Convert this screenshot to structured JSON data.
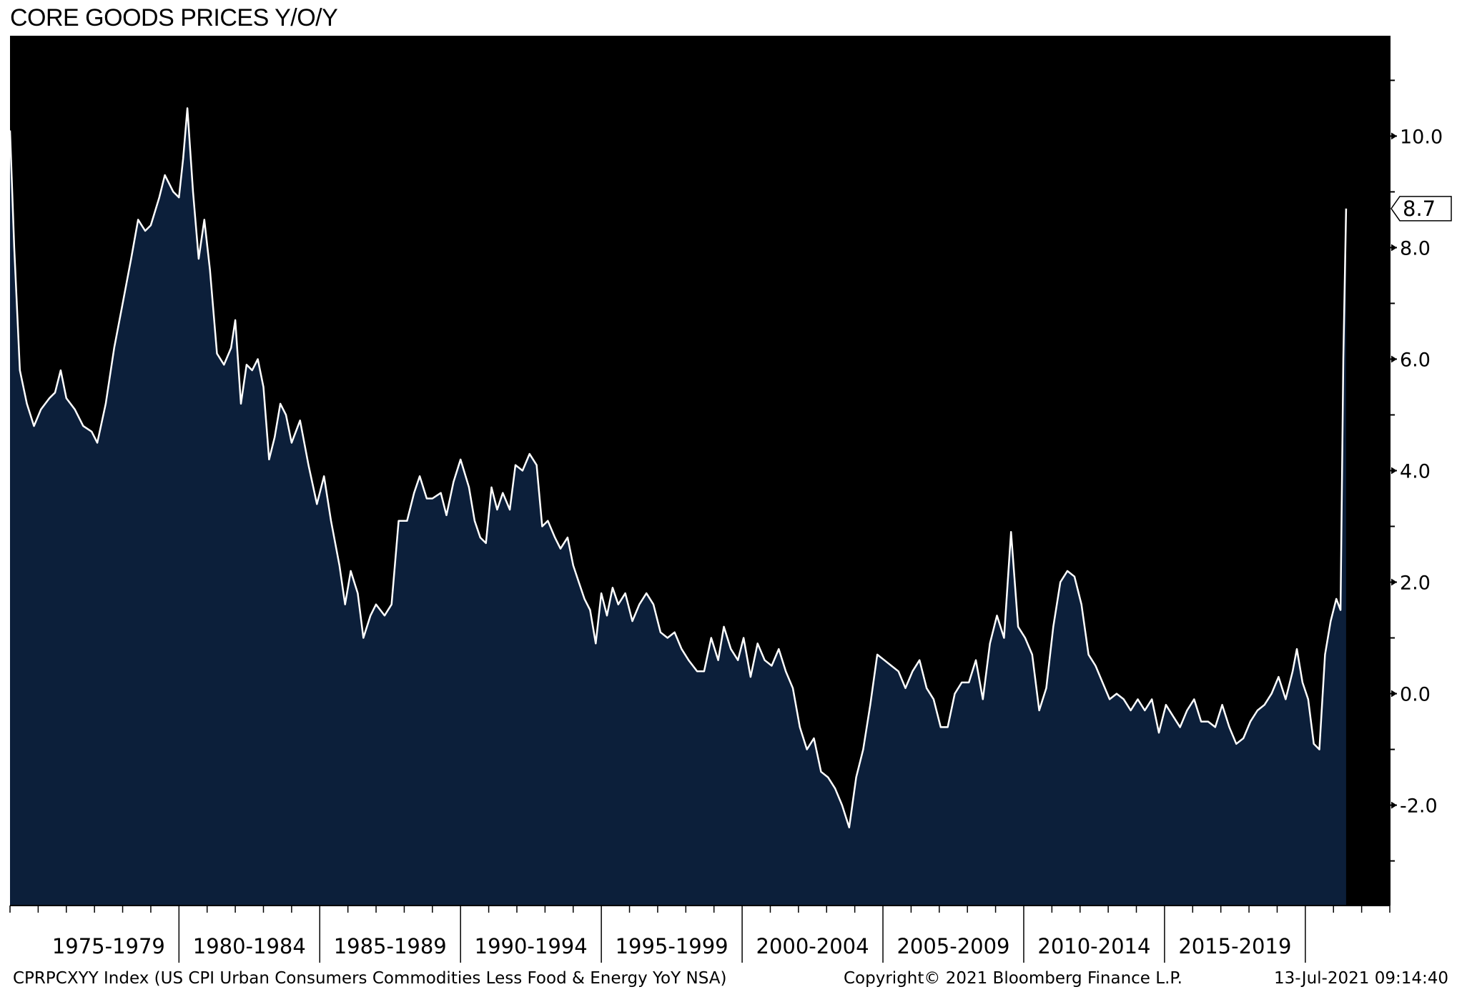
{
  "chart_data": {
    "type": "area",
    "title": "CORE GOODS PRICES Y/O/Y",
    "xlabel": "",
    "ylabel": "",
    "xlim": [
      1974.0,
      2023.0
    ],
    "ylim": [
      -3.8,
      11.8
    ],
    "grid": false,
    "y_axis_side": "right",
    "y_ticks": [
      -2.0,
      0.0,
      2.0,
      4.0,
      6.0,
      8.0,
      10.0
    ],
    "y_tick_labels": [
      "-2.0",
      "0.0",
      "2.0",
      "4.0",
      "6.0",
      "8.0",
      "10.0"
    ],
    "x_period_labels": [
      "1975-1979",
      "1980-1984",
      "1985-1989",
      "1990-1994",
      "1995-1999",
      "2000-2004",
      "2005-2009",
      "2010-2014",
      "2015-2019"
    ],
    "last_value_label": "8.7",
    "colors": {
      "area_fill": "#0c1f3a",
      "line": "#ffffff",
      "background": "#000000"
    },
    "series": [
      {
        "values": [
          [
            1974.0,
            10.1
          ],
          [
            1974.15,
            8.0
          ],
          [
            1974.35,
            5.8
          ],
          [
            1974.6,
            5.2
          ],
          [
            1974.85,
            4.8
          ],
          [
            1975.1,
            5.1
          ],
          [
            1975.4,
            5.3
          ],
          [
            1975.6,
            5.4
          ],
          [
            1975.8,
            5.8
          ],
          [
            1976.0,
            5.3
          ],
          [
            1976.3,
            5.1
          ],
          [
            1976.6,
            4.8
          ],
          [
            1976.9,
            4.7
          ],
          [
            1977.1,
            4.5
          ],
          [
            1977.4,
            5.2
          ],
          [
            1977.7,
            6.2
          ],
          [
            1978.0,
            7.0
          ],
          [
            1978.3,
            7.8
          ],
          [
            1978.55,
            8.5
          ],
          [
            1978.8,
            8.3
          ],
          [
            1979.0,
            8.4
          ],
          [
            1979.3,
            8.9
          ],
          [
            1979.5,
            9.3
          ],
          [
            1979.8,
            9.0
          ],
          [
            1980.0,
            8.9
          ],
          [
            1980.15,
            9.6
          ],
          [
            1980.3,
            10.5
          ],
          [
            1980.5,
            9.0
          ],
          [
            1980.7,
            7.8
          ],
          [
            1980.9,
            8.5
          ],
          [
            1981.1,
            7.6
          ],
          [
            1981.35,
            6.1
          ],
          [
            1981.6,
            5.9
          ],
          [
            1981.85,
            6.2
          ],
          [
            1982.0,
            6.7
          ],
          [
            1982.2,
            5.2
          ],
          [
            1982.4,
            5.9
          ],
          [
            1982.6,
            5.8
          ],
          [
            1982.8,
            6.0
          ],
          [
            1983.0,
            5.5
          ],
          [
            1983.2,
            4.2
          ],
          [
            1983.4,
            4.6
          ],
          [
            1983.6,
            5.2
          ],
          [
            1983.8,
            5.0
          ],
          [
            1984.0,
            4.5
          ],
          [
            1984.3,
            4.9
          ],
          [
            1984.6,
            4.1
          ],
          [
            1984.9,
            3.4
          ],
          [
            1985.15,
            3.9
          ],
          [
            1985.4,
            3.1
          ],
          [
            1985.7,
            2.3
          ],
          [
            1985.9,
            1.6
          ],
          [
            1986.1,
            2.2
          ],
          [
            1986.35,
            1.8
          ],
          [
            1986.55,
            1.0
          ],
          [
            1986.8,
            1.4
          ],
          [
            1987.0,
            1.6
          ],
          [
            1987.3,
            1.4
          ],
          [
            1987.55,
            1.6
          ],
          [
            1987.8,
            3.1
          ],
          [
            1988.1,
            3.1
          ],
          [
            1988.35,
            3.6
          ],
          [
            1988.55,
            3.9
          ],
          [
            1988.8,
            3.5
          ],
          [
            1989.0,
            3.5
          ],
          [
            1989.3,
            3.6
          ],
          [
            1989.5,
            3.2
          ],
          [
            1989.75,
            3.8
          ],
          [
            1990.0,
            4.2
          ],
          [
            1990.3,
            3.7
          ],
          [
            1990.5,
            3.1
          ],
          [
            1990.7,
            2.8
          ],
          [
            1990.9,
            2.7
          ],
          [
            1991.1,
            3.7
          ],
          [
            1991.3,
            3.3
          ],
          [
            1991.5,
            3.6
          ],
          [
            1991.75,
            3.3
          ],
          [
            1991.95,
            4.1
          ],
          [
            1992.2,
            4.0
          ],
          [
            1992.45,
            4.3
          ],
          [
            1992.7,
            4.1
          ],
          [
            1992.9,
            3.0
          ],
          [
            1993.1,
            3.1
          ],
          [
            1993.35,
            2.8
          ],
          [
            1993.55,
            2.6
          ],
          [
            1993.8,
            2.8
          ],
          [
            1994.0,
            2.3
          ],
          [
            1994.2,
            2.0
          ],
          [
            1994.4,
            1.7
          ],
          [
            1994.6,
            1.5
          ],
          [
            1994.8,
            0.9
          ],
          [
            1995.0,
            1.8
          ],
          [
            1995.2,
            1.4
          ],
          [
            1995.4,
            1.9
          ],
          [
            1995.6,
            1.6
          ],
          [
            1995.85,
            1.8
          ],
          [
            1996.1,
            1.3
          ],
          [
            1996.35,
            1.6
          ],
          [
            1996.6,
            1.8
          ],
          [
            1996.85,
            1.6
          ],
          [
            1997.1,
            1.1
          ],
          [
            1997.35,
            1.0
          ],
          [
            1997.6,
            1.1
          ],
          [
            1997.85,
            0.8
          ],
          [
            1998.1,
            0.6
          ],
          [
            1998.4,
            0.4
          ],
          [
            1998.65,
            0.4
          ],
          [
            1998.9,
            1.0
          ],
          [
            1999.15,
            0.6
          ],
          [
            1999.35,
            1.2
          ],
          [
            1999.6,
            0.8
          ],
          [
            1999.85,
            0.6
          ],
          [
            2000.05,
            1.0
          ],
          [
            2000.3,
            0.3
          ],
          [
            2000.55,
            0.9
          ],
          [
            2000.8,
            0.6
          ],
          [
            2001.05,
            0.5
          ],
          [
            2001.3,
            0.8
          ],
          [
            2001.55,
            0.4
          ],
          [
            2001.8,
            0.1
          ],
          [
            2002.05,
            -0.6
          ],
          [
            2002.3,
            -1.0
          ],
          [
            2002.55,
            -0.8
          ],
          [
            2002.8,
            -1.4
          ],
          [
            2003.05,
            -1.5
          ],
          [
            2003.3,
            -1.7
          ],
          [
            2003.55,
            -2.0
          ],
          [
            2003.8,
            -2.4
          ],
          [
            2004.05,
            -1.5
          ],
          [
            2004.3,
            -1.0
          ],
          [
            2004.55,
            -0.2
          ],
          [
            2004.8,
            0.7
          ],
          [
            2005.05,
            0.6
          ],
          [
            2005.3,
            0.5
          ],
          [
            2005.55,
            0.4
          ],
          [
            2005.8,
            0.1
          ],
          [
            2006.05,
            0.4
          ],
          [
            2006.3,
            0.6
          ],
          [
            2006.55,
            0.1
          ],
          [
            2006.8,
            -0.1
          ],
          [
            2007.05,
            -0.6
          ],
          [
            2007.3,
            -0.6
          ],
          [
            2007.55,
            0.0
          ],
          [
            2007.8,
            0.2
          ],
          [
            2008.05,
            0.2
          ],
          [
            2008.3,
            0.6
          ],
          [
            2008.55,
            -0.1
          ],
          [
            2008.8,
            0.9
          ],
          [
            2009.05,
            1.4
          ],
          [
            2009.3,
            1.0
          ],
          [
            2009.55,
            2.9
          ],
          [
            2009.8,
            1.2
          ],
          [
            2010.05,
            1.0
          ],
          [
            2010.3,
            0.7
          ],
          [
            2010.55,
            -0.3
          ],
          [
            2010.8,
            0.1
          ],
          [
            2011.05,
            1.2
          ],
          [
            2011.3,
            2.0
          ],
          [
            2011.55,
            2.2
          ],
          [
            2011.8,
            2.1
          ],
          [
            2012.05,
            1.6
          ],
          [
            2012.3,
            0.7
          ],
          [
            2012.55,
            0.5
          ],
          [
            2012.8,
            0.2
          ],
          [
            2013.05,
            -0.1
          ],
          [
            2013.3,
            0.0
          ],
          [
            2013.55,
            -0.1
          ],
          [
            2013.8,
            -0.3
          ],
          [
            2014.05,
            -0.1
          ],
          [
            2014.3,
            -0.3
          ],
          [
            2014.55,
            -0.1
          ],
          [
            2014.8,
            -0.7
          ],
          [
            2015.05,
            -0.2
          ],
          [
            2015.3,
            -0.4
          ],
          [
            2015.55,
            -0.6
          ],
          [
            2015.8,
            -0.3
          ],
          [
            2016.05,
            -0.1
          ],
          [
            2016.3,
            -0.5
          ],
          [
            2016.55,
            -0.5
          ],
          [
            2016.8,
            -0.6
          ],
          [
            2017.05,
            -0.2
          ],
          [
            2017.3,
            -0.6
          ],
          [
            2017.55,
            -0.9
          ],
          [
            2017.8,
            -0.8
          ],
          [
            2018.05,
            -0.5
          ],
          [
            2018.3,
            -0.3
          ],
          [
            2018.55,
            -0.2
          ],
          [
            2018.8,
            0.0
          ],
          [
            2019.05,
            0.3
          ],
          [
            2019.3,
            -0.1
          ],
          [
            2019.55,
            0.4
          ],
          [
            2019.7,
            0.8
          ],
          [
            2019.9,
            0.2
          ],
          [
            2020.1,
            -0.1
          ],
          [
            2020.3,
            -0.9
          ],
          [
            2020.5,
            -1.0
          ],
          [
            2020.7,
            0.7
          ],
          [
            2020.9,
            1.3
          ],
          [
            2021.1,
            1.7
          ],
          [
            2021.25,
            1.5
          ],
          [
            2021.35,
            6.0
          ],
          [
            2021.45,
            8.7
          ]
        ]
      }
    ],
    "annotations": [
      "CPRPCXYY Index (US CPI Urban Consumers Commodities Less Food & Energy YoY NSA)",
      "Copyright© 2021 Bloomberg Finance L.P.",
      "13-Jul-2021 09:14:40"
    ]
  }
}
